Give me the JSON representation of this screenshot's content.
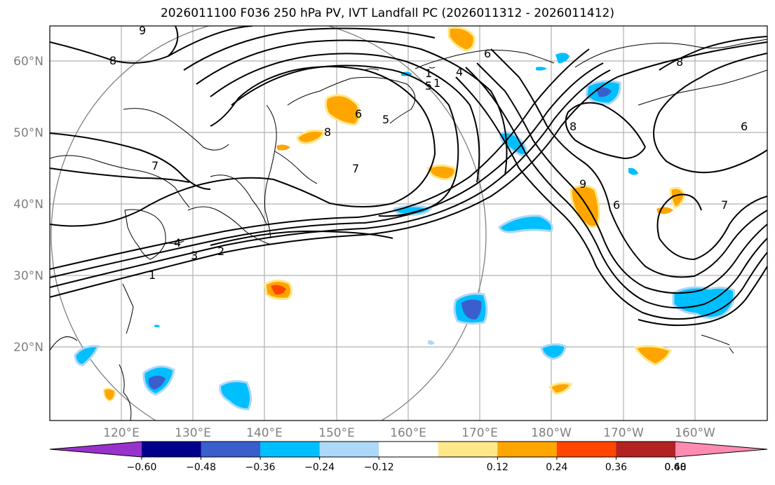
{
  "title": "2026011100 F036 250 hPa PV, IVT Landfall PC (2026011312 - 2026011412)",
  "latitude_labels": [
    "60°N",
    "50°N",
    "40°N",
    "30°N",
    "20°N"
  ],
  "longitude_labels": [
    "120°E",
    "130°E",
    "140°E",
    "150°E",
    "160°E",
    "170°E",
    "180°W",
    "170°W",
    "160°W"
  ],
  "contour_labels": [
    "9",
    "8",
    "7",
    "6",
    "5",
    "4",
    "3",
    "2",
    "1",
    "6",
    "8",
    "7",
    "5",
    "8",
    "9",
    "6",
    "7",
    "1",
    "4",
    "1",
    "8",
    "6"
  ],
  "colorbar": {
    "tick_labels": [
      "−0.60",
      "−0.48",
      "−0.36",
      "−0.24",
      "−0.12",
      "0.12",
      "0.24",
      "0.36",
      "0.48",
      "0.60"
    ],
    "colors": [
      "#9932cc",
      "#00008b",
      "#3a5fcd",
      "#00bfff",
      "#add8f7",
      "#ffffff",
      "#ffe88a",
      "#ffa500",
      "#ff4500",
      "#b22222",
      "#ff8cb0"
    ],
    "levels": [
      -0.6,
      -0.48,
      -0.36,
      -0.24,
      -0.12,
      0.12,
      0.24,
      0.36,
      0.48,
      0.6
    ]
  }
}
